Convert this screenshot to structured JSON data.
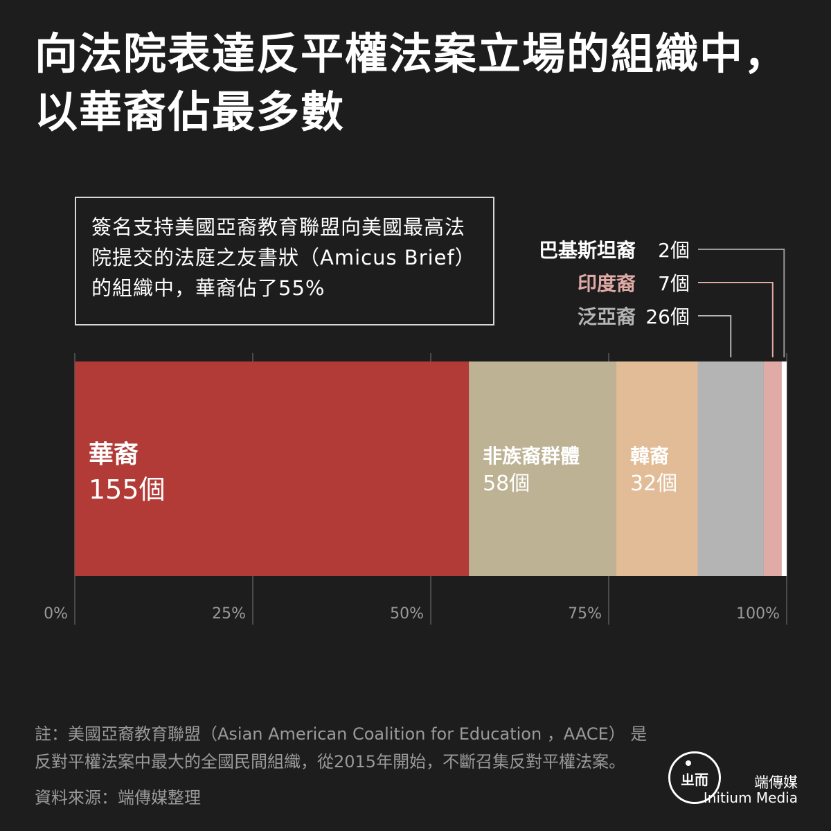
{
  "title": "向法院表達反平權法案立場的組織中，以華裔佔最多數",
  "callout": "簽名支持美國亞裔教育聯盟向美國最高法院提交的法庭之友書狀（Amicus Brief）的組織中，華裔佔了55%",
  "chart_data": {
    "type": "bar",
    "orientation": "horizontal-stacked-100",
    "categories": [
      "華裔",
      "非族裔群體",
      "韓裔",
      "泛亞裔",
      "印度裔",
      "巴基斯坦裔"
    ],
    "series": [
      {
        "label": "華裔",
        "value": 155,
        "value_label": "155個",
        "color": "#b23a37"
      },
      {
        "label": "非族裔群體",
        "value": 58,
        "value_label": "58個",
        "color": "#bdb294"
      },
      {
        "label": "韓裔",
        "value": 32,
        "value_label": "32個",
        "color": "#e2bc97"
      },
      {
        "label": "泛亞裔",
        "value": 26,
        "value_label": "26個",
        "color": "#b4b4b4"
      },
      {
        "label": "印度裔",
        "value": 7,
        "value_label": "7個",
        "color": "#e0aaa6"
      },
      {
        "label": "巴基斯坦裔",
        "value": 2,
        "value_label": "2個",
        "color": "#ffffff"
      }
    ],
    "xticks": [
      "0%",
      "25%",
      "50%",
      "75%",
      "100%"
    ],
    "xlim": [
      0,
      100
    ],
    "grid": true,
    "legend": "none"
  },
  "colors": {
    "background": "#1d1d1d",
    "label_indian": "#e0aaa6",
    "label_panasian": "#b4b4b4",
    "axis_text": "#9a9a9a"
  },
  "note": "註：美國亞裔教育聯盟（Asian American Coalition for Education ，AACE） 是反對平權法案中最大的全國民間組織，從2015年開始，不斷召集反對平權法案。",
  "source": "資料來源：端傳媒整理",
  "brand": {
    "zh": "端傳媒",
    "en": "Initium Media",
    "logo_text": "ㄓ而"
  }
}
